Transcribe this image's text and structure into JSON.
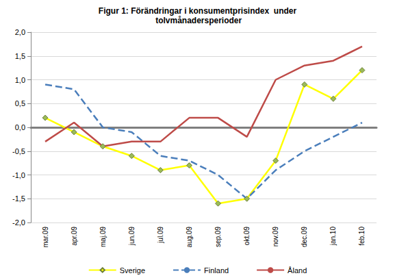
{
  "chart_data": {
    "type": "line",
    "title": "Figur 1: Förändringar i konsumentprisindex  under tolvmånadersperioder",
    "categories": [
      "mar.09",
      "apr.09",
      "maj.09",
      "jun.09",
      "jul.09",
      "aug.09",
      "sep.09",
      "okt.09",
      "nov.09",
      "dec.09",
      "jan.10",
      "feb.10"
    ],
    "series": [
      {
        "name": "Sverige",
        "color": "#ffff00",
        "marker": "diamond",
        "line_style": "solid",
        "values": [
          0.2,
          -0.1,
          -0.4,
          -0.6,
          -0.9,
          -0.8,
          -1.6,
          -1.5,
          -0.7,
          0.9,
          0.6,
          1.2
        ]
      },
      {
        "name": "Finland",
        "color": "#4a7ebb",
        "marker": "none",
        "line_style": "dashed",
        "values": [
          0.9,
          0.8,
          0.0,
          -0.1,
          -0.6,
          -0.7,
          -1.0,
          -1.5,
          -0.9,
          -0.5,
          -0.2,
          0.1
        ]
      },
      {
        "name": "Åland",
        "color": "#be4b48",
        "marker": "none",
        "line_style": "solid",
        "values": [
          -0.3,
          0.1,
          -0.4,
          -0.3,
          -0.3,
          0.2,
          0.2,
          -0.2,
          1.0,
          1.3,
          1.4,
          1.7
        ]
      }
    ],
    "ylim": [
      -2.0,
      2.0
    ],
    "yticks": [
      {
        "value": -2.0,
        "label": "-2,0"
      },
      {
        "value": -1.5,
        "label": "-1,5"
      },
      {
        "value": -1.0,
        "label": "-1,0"
      },
      {
        "value": -0.5,
        "label": "-0,5"
      },
      {
        "value": 0.0,
        "label": "0,0"
      },
      {
        "value": 0.5,
        "label": "0,5"
      },
      {
        "value": 1.0,
        "label": "1,0"
      },
      {
        "value": 1.5,
        "label": "1,5"
      },
      {
        "value": 2.0,
        "label": "2,0"
      }
    ],
    "grid": true,
    "legend": "bottom"
  }
}
